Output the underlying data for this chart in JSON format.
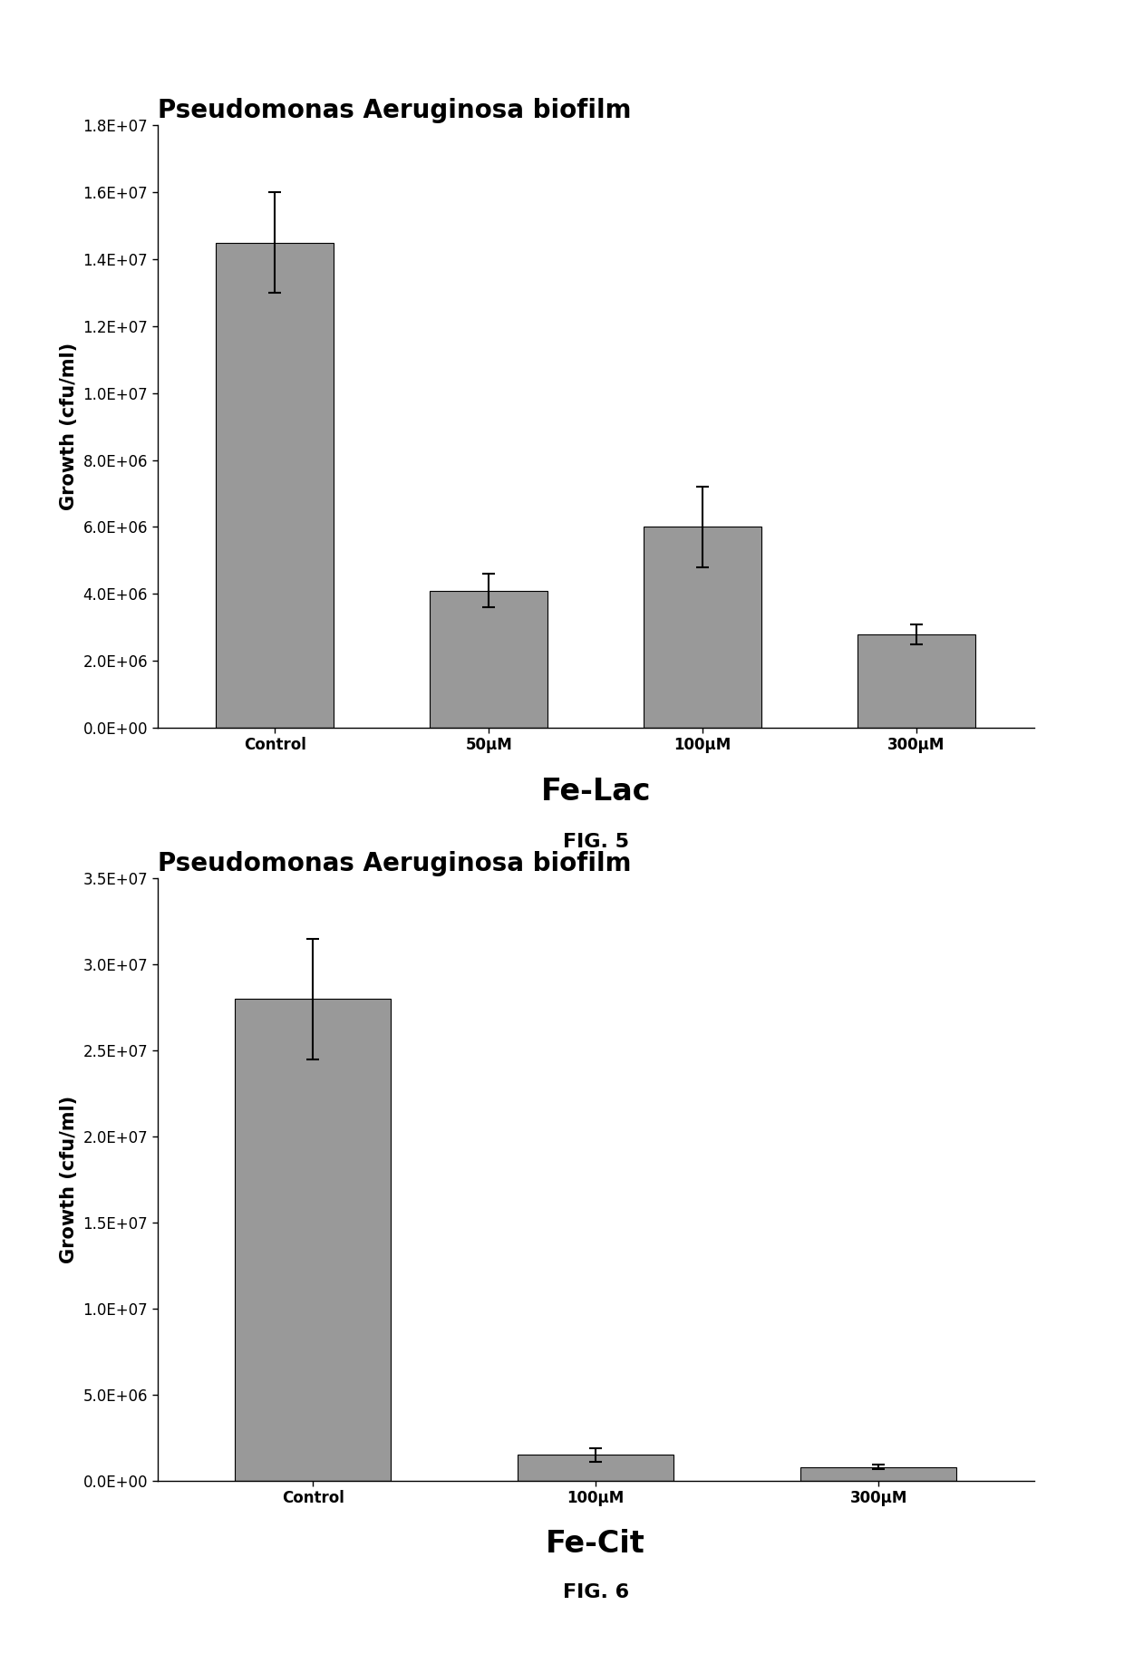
{
  "fig1": {
    "title": "Pseudomonas Aeruginosa biofilm",
    "categories": [
      "Control",
      "50μM",
      "100μM",
      "300μM"
    ],
    "values": [
      14500000.0,
      4100000.0,
      6000000.0,
      2800000.0
    ],
    "errors": [
      1500000.0,
      500000.0,
      1200000.0,
      300000.0
    ],
    "ylim": [
      0,
      18000000.0
    ],
    "yticks": [
      0,
      2000000.0,
      4000000.0,
      6000000.0,
      8000000.0,
      10000000.0,
      12000000.0,
      14000000.0,
      16000000.0,
      18000000.0
    ],
    "yticklabels": [
      "0.0E+00",
      "2.0E+06",
      "4.0E+06",
      "6.0E+06",
      "8.0E+06",
      "1.0E+07",
      "1.2E+07",
      "1.4E+07",
      "1.6E+07",
      "1.8E+07"
    ],
    "ylabel": "Growth (cfu/ml)",
    "xlabel_below": "Fe-Lac",
    "fig_label": "FIG. 5",
    "bar_color": "#999999",
    "bar_edgecolor": "#000000"
  },
  "fig2": {
    "title": "Pseudomonas Aeruginosa biofilm",
    "categories": [
      "Control",
      "100μM",
      "300μM"
    ],
    "values": [
      28000000.0,
      1500000.0,
      800000.0
    ],
    "errors": [
      3500000.0,
      400000.0,
      150000.0
    ],
    "ylim": [
      0,
      35000000.0
    ],
    "yticks": [
      0,
      5000000.0,
      10000000.0,
      15000000.0,
      20000000.0,
      25000000.0,
      30000000.0,
      35000000.0
    ],
    "yticklabels": [
      "0.0E+00",
      "5.0E+06",
      "1.0E+07",
      "1.5E+07",
      "2.0E+07",
      "2.5E+07",
      "3.0E+07",
      "3.5E+07"
    ],
    "ylabel": "Growth (cfu/ml)",
    "xlabel_below": "Fe-Cit",
    "fig_label": "FIG. 6",
    "bar_color": "#999999",
    "bar_edgecolor": "#000000"
  },
  "background_color": "#ffffff",
  "title_fontsize": 20,
  "axis_label_fontsize": 15,
  "tick_fontsize": 12,
  "xlabel_below_fontsize": 24,
  "fig_label_fontsize": 16
}
